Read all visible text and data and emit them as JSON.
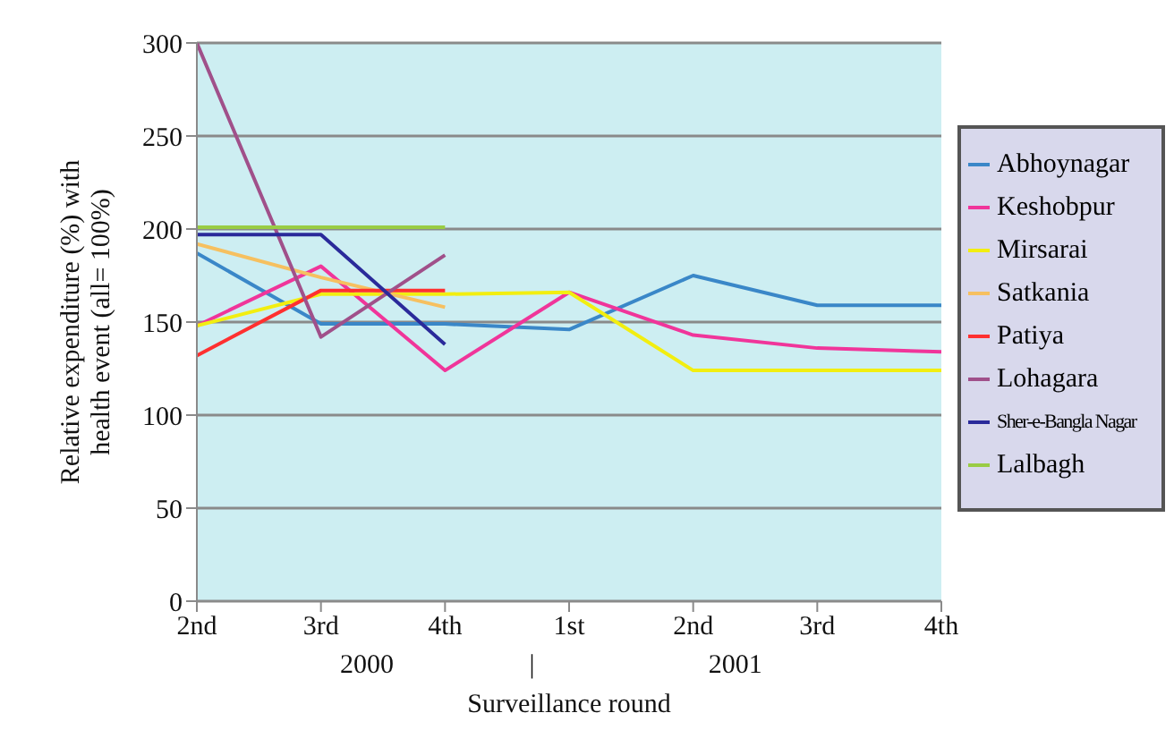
{
  "chart_data": {
    "type": "line",
    "xlabel": "Surveillance round",
    "ylabel": "Relative expenditure (%) with health event (all= 100%)",
    "categories": [
      "2nd",
      "3rd",
      "4th",
      "1st",
      "2nd",
      "3rd",
      "4th"
    ],
    "annotations": [
      "2000",
      "|",
      "2001"
    ],
    "ylim": [
      0,
      300
    ],
    "yticks": [
      0,
      50,
      100,
      150,
      200,
      250,
      300
    ],
    "grid": "y",
    "legend": "right",
    "marker": "none",
    "line_style": "solid",
    "series": [
      {
        "name": "Abhoynagar",
        "color": "#3a87c8",
        "values": [
          187,
          149,
          149,
          146,
          175,
          159,
          159
        ]
      },
      {
        "name": "Keshobpur",
        "color": "#f0359a",
        "values": [
          148,
          180,
          124,
          166,
          143,
          136,
          134
        ]
      },
      {
        "name": "Mirsarai",
        "color": "#f2ee10",
        "values": [
          148,
          165,
          165,
          166,
          124,
          124,
          124
        ]
      },
      {
        "name": "Satkania",
        "color": "#f6c060",
        "values": [
          192,
          174,
          158,
          null,
          null,
          null,
          null
        ]
      },
      {
        "name": "Patiya",
        "color": "#ff3030",
        "values": [
          132,
          167,
          167,
          null,
          null,
          null,
          null
        ]
      },
      {
        "name": "Lohagara",
        "color": "#a0508a",
        "values": [
          300,
          142,
          186,
          null,
          null,
          null,
          null
        ]
      },
      {
        "name": "Sher-e-Bangla Nagar",
        "color": "#2a2a9a",
        "values": [
          197,
          197,
          138,
          null,
          null,
          null,
          null
        ]
      },
      {
        "name": "Lalbagh",
        "color": "#99cc44",
        "values": [
          201,
          201,
          201,
          null,
          null,
          null,
          null
        ]
      }
    ]
  }
}
